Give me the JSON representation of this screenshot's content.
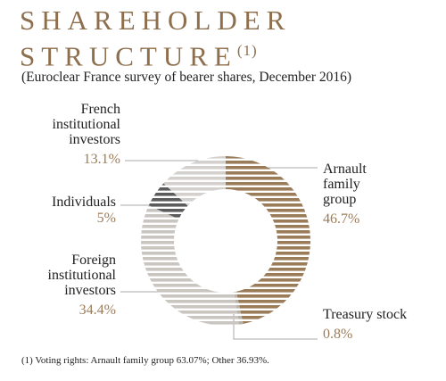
{
  "chart_data": {
    "type": "pie",
    "title": "SHAREHOLDER STRUCTURE",
    "title_note": "(1)",
    "subtitle": "(Euroclear France survey of bearer shares, December 2016)",
    "footnote": "(1) Voting rights: Arnault family group 63.07%; Other 36.93%.",
    "categories": [
      "Arnault\nfamily\ngroup",
      "Treasury stock",
      "Foreign\ninstitutional\ninvestors",
      "Individuals",
      "French\ninstitutional\ninvestors"
    ],
    "values": [
      46.7,
      0.8,
      34.4,
      5,
      13.1
    ],
    "value_labels": [
      "46.7%",
      "0.8%",
      "34.4%",
      "5%",
      "13.1%"
    ],
    "colors": [
      "#9b7c59",
      "#b9b2a9",
      "#c9c5c1",
      "#5b5b5b",
      "#d3d0cd"
    ]
  }
}
